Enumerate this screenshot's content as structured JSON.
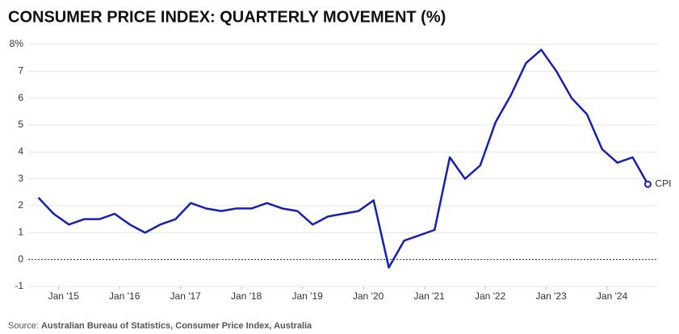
{
  "chart_data": {
    "type": "line",
    "title": "CONSUMER PRICE INDEX: QUARTERLY MOVEMENT (%)",
    "source_prefix": "Source:",
    "source": "Australian Bureau of Statistics, Consumer Price Index, Australia",
    "x": [
      "2014-09",
      "2014-12",
      "2015-03",
      "2015-06",
      "2015-09",
      "2015-12",
      "2016-03",
      "2016-06",
      "2016-09",
      "2016-12",
      "2017-03",
      "2017-06",
      "2017-09",
      "2017-12",
      "2018-03",
      "2018-06",
      "2018-09",
      "2018-12",
      "2019-03",
      "2019-06",
      "2019-09",
      "2019-12",
      "2020-03",
      "2020-06",
      "2020-09",
      "2020-12",
      "2021-03",
      "2021-06",
      "2021-09",
      "2021-12",
      "2022-03",
      "2022-06",
      "2022-09",
      "2022-12",
      "2023-03",
      "2023-06",
      "2023-09",
      "2023-12",
      "2024-03",
      "2024-06",
      "2024-09"
    ],
    "series": [
      {
        "name": "CPI",
        "color": "#1420b4",
        "values": [
          2.3,
          1.7,
          1.3,
          1.5,
          1.5,
          1.7,
          1.3,
          1.0,
          1.3,
          1.5,
          2.1,
          1.9,
          1.8,
          1.9,
          1.9,
          2.1,
          1.9,
          1.8,
          1.3,
          1.6,
          1.7,
          1.8,
          2.2,
          -0.3,
          0.7,
          0.9,
          1.1,
          3.8,
          3.0,
          3.5,
          5.1,
          6.1,
          7.3,
          7.8,
          7.0,
          6.0,
          5.4,
          4.1,
          3.6,
          3.8,
          2.8
        ]
      }
    ],
    "xlim": [
      "2014-07",
      "2024-11"
    ],
    "xticks": [
      {
        "value": "2015-01",
        "label": "Jan '15"
      },
      {
        "value": "2016-01",
        "label": "Jan '16"
      },
      {
        "value": "2017-01",
        "label": "Jan '17"
      },
      {
        "value": "2018-01",
        "label": "Jan '18"
      },
      {
        "value": "2019-01",
        "label": "Jan '19"
      },
      {
        "value": "2020-01",
        "label": "Jan '20"
      },
      {
        "value": "2021-01",
        "label": "Jan '21"
      },
      {
        "value": "2022-01",
        "label": "Jan '22"
      },
      {
        "value": "2023-01",
        "label": "Jan '23"
      },
      {
        "value": "2024-01",
        "label": "Jan '24"
      }
    ],
    "ylim": [
      -1,
      8
    ],
    "yticks": [
      -1,
      0,
      1,
      2,
      3,
      4,
      5,
      6,
      7,
      {
        "value": 8,
        "label": "8%"
      }
    ],
    "grid": true
  }
}
